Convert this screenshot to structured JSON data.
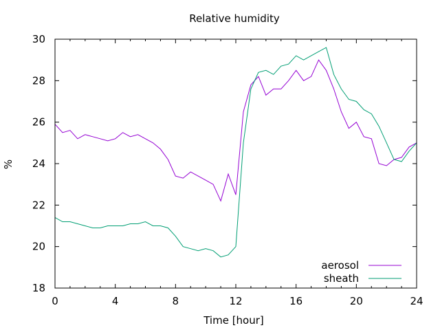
{
  "chart_data": {
    "type": "line",
    "title": "Relative humidity",
    "xlabel": "Time [hour]",
    "ylabel": "%",
    "xlim": [
      0,
      24
    ],
    "ylim": [
      18,
      30
    ],
    "x_ticks": [
      0,
      4,
      8,
      12,
      16,
      20,
      24
    ],
    "y_ticks": [
      18,
      20,
      22,
      24,
      26,
      28,
      30
    ],
    "grid": false,
    "legend_position": "bottom-right",
    "series": [
      {
        "name": "aerosol",
        "color": "#9400d3",
        "x": [
          0,
          0.5,
          1,
          1.5,
          2,
          2.5,
          3,
          3.5,
          4,
          4.5,
          5,
          5.5,
          6,
          6.5,
          7,
          7.5,
          8,
          8.5,
          9,
          9.5,
          10,
          10.5,
          11,
          11.5,
          12,
          12.5,
          13,
          13.5,
          14,
          14.5,
          15,
          15.5,
          16,
          16.5,
          17,
          17.5,
          18,
          18.5,
          19,
          19.5,
          20,
          20.5,
          21,
          21.5,
          22,
          22.5,
          23,
          23.5,
          24
        ],
        "y": [
          25.9,
          25.5,
          25.6,
          25.2,
          25.4,
          25.3,
          25.2,
          25.1,
          25.2,
          25.5,
          25.3,
          25.4,
          25.2,
          25.0,
          24.7,
          24.2,
          23.4,
          23.3,
          23.6,
          23.4,
          23.2,
          23.0,
          22.2,
          23.5,
          22.5,
          26.5,
          27.8,
          28.2,
          27.3,
          27.6,
          27.6,
          28.0,
          28.5,
          28.0,
          28.2,
          29.0,
          28.5,
          27.6,
          26.5,
          25.7,
          26.0,
          25.3,
          25.2,
          24.0,
          23.9,
          24.2,
          24.3,
          24.8,
          25.0
        ]
      },
      {
        "name": "sheath",
        "color": "#009e73",
        "x": [
          0,
          0.5,
          1,
          1.5,
          2,
          2.5,
          3,
          3.5,
          4,
          4.5,
          5,
          5.5,
          6,
          6.5,
          7,
          7.5,
          8,
          8.5,
          9,
          9.5,
          10,
          10.5,
          11,
          11.5,
          12,
          12.5,
          13,
          13.5,
          14,
          14.5,
          15,
          15.5,
          16,
          16.5,
          17,
          17.5,
          18,
          18.5,
          19,
          19.5,
          20,
          20.5,
          21,
          21.5,
          22,
          22.5,
          23,
          23.5,
          24
        ],
        "y": [
          21.4,
          21.2,
          21.2,
          21.1,
          21.0,
          20.9,
          20.9,
          21.0,
          21.0,
          21.0,
          21.1,
          21.1,
          21.2,
          21.0,
          21.0,
          20.9,
          20.5,
          20.0,
          19.9,
          19.8,
          19.9,
          19.8,
          19.5,
          19.6,
          20.0,
          25.0,
          27.6,
          28.4,
          28.5,
          28.3,
          28.7,
          28.8,
          29.2,
          29.0,
          29.2,
          29.4,
          29.6,
          28.3,
          27.6,
          27.1,
          27.0,
          26.6,
          26.4,
          25.8,
          25.0,
          24.2,
          24.1,
          24.6,
          25.0
        ]
      }
    ]
  }
}
